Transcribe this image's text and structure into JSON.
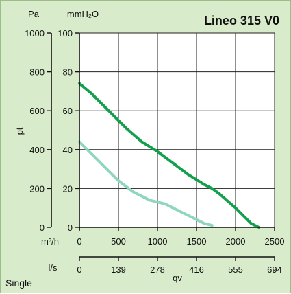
{
  "title": "Lineo 315 V0",
  "footer_label": "Single",
  "colors": {
    "background": "#d8ebcb",
    "plot_background": "#ffffff",
    "series_high": "#12a04c",
    "series_low": "#8ed6be"
  },
  "chart_data": {
    "type": "line",
    "title": "Lineo 315 V0",
    "grid": true,
    "y_primary": {
      "unit": "Pa",
      "range": [
        0,
        1000
      ],
      "ticks": [
        0,
        200,
        400,
        600,
        800,
        1000
      ]
    },
    "y_secondary": {
      "unit": "mmH₂O",
      "range": [
        0,
        100
      ],
      "ticks": [
        0,
        20,
        40,
        60,
        80,
        100
      ]
    },
    "y_label": "pt",
    "x_primary": {
      "unit": "m³/h",
      "range": [
        0,
        2500
      ],
      "ticks": [
        0,
        500,
        1000,
        1500,
        2000,
        2500
      ]
    },
    "x_secondary": {
      "unit": "l/s",
      "range": [
        0,
        694
      ],
      "ticks": [
        "0",
        "139",
        "278",
        "416",
        "555",
        "694"
      ]
    },
    "x_label": "qv",
    "series": [
      {
        "x": [
          0,
          150,
          300,
          450,
          600,
          800,
          1000,
          1200,
          1400,
          1600,
          1700,
          1800,
          2000,
          2100,
          2200,
          2300
        ],
        "y": [
          74,
          69,
          63,
          57,
          51,
          44,
          39,
          33,
          27,
          22,
          20,
          17,
          10,
          6,
          2,
          0
        ]
      },
      {
        "x": [
          0,
          100,
          200,
          300,
          400,
          500,
          600,
          700,
          800,
          900,
          1000,
          1100,
          1200,
          1300,
          1400,
          1500,
          1600,
          1700
        ],
        "y": [
          44,
          40,
          36,
          32,
          28,
          24,
          21,
          18,
          16,
          14,
          13,
          12,
          10,
          8,
          6,
          4,
          2,
          1
        ]
      }
    ]
  }
}
